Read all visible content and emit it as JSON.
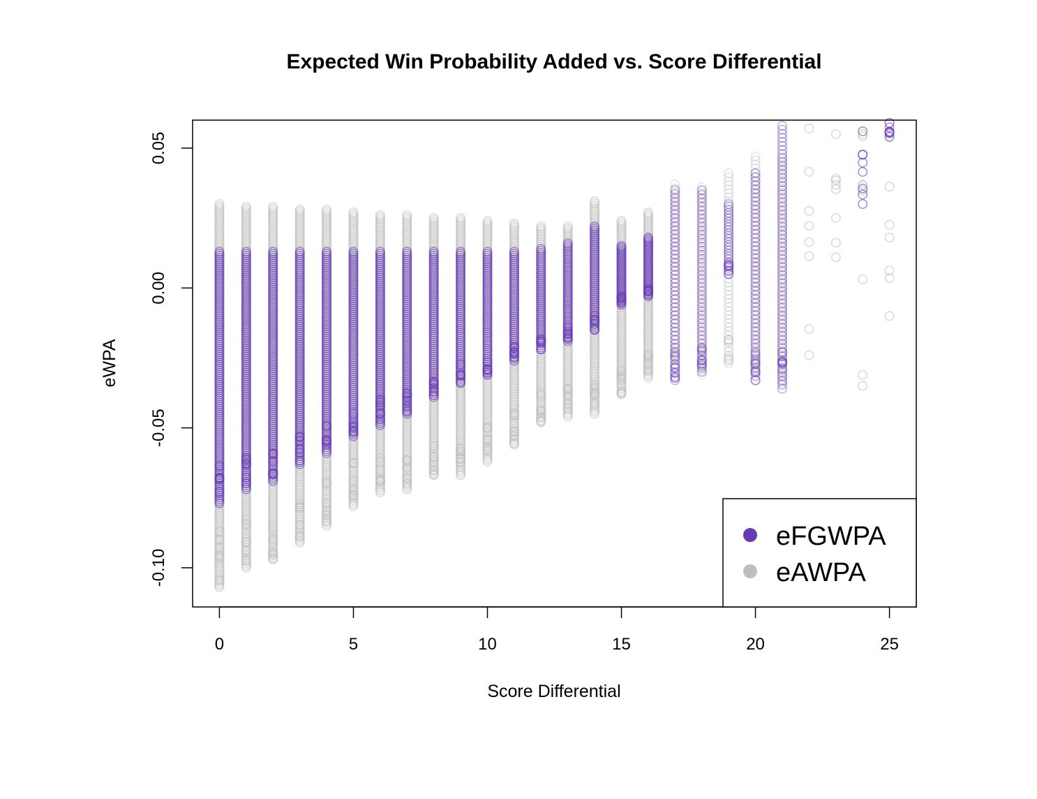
{
  "chart_data": {
    "type": "scatter",
    "title": "Expected Win Probability Added vs. Score Differential",
    "xlabel": "Score Differential",
    "ylabel": "eWPA",
    "xlim": [
      -1,
      26
    ],
    "ylim": [
      -0.114,
      0.06
    ],
    "x_ticks": [
      0,
      5,
      10,
      15,
      20,
      25
    ],
    "x_tick_labels": [
      "0",
      "5",
      "10",
      "15",
      "20",
      "25"
    ],
    "y_ticks": [
      -0.1,
      -0.05,
      0.0,
      0.05
    ],
    "y_tick_labels": [
      "-0.10",
      "-0.05",
      "0.00",
      "0.05"
    ],
    "grid": false,
    "legend_position": "bottom-right",
    "series": [
      {
        "name": "eFGWPA",
        "color": "#673ab7",
        "marker": "open-circle",
        "columns": [
          {
            "x": 0,
            "min": -0.077,
            "max": 0.013,
            "density": "dense"
          },
          {
            "x": 1,
            "min": -0.072,
            "max": 0.013,
            "density": "dense"
          },
          {
            "x": 2,
            "min": -0.069,
            "max": 0.013,
            "density": "dense"
          },
          {
            "x": 3,
            "min": -0.063,
            "max": 0.013,
            "density": "dense"
          },
          {
            "x": 4,
            "min": -0.059,
            "max": 0.013,
            "density": "dense"
          },
          {
            "x": 5,
            "min": -0.053,
            "max": 0.013,
            "density": "dense"
          },
          {
            "x": 6,
            "min": -0.049,
            "max": 0.013,
            "density": "dense"
          },
          {
            "x": 7,
            "min": -0.045,
            "max": 0.013,
            "density": "dense"
          },
          {
            "x": 8,
            "min": -0.039,
            "max": 0.013,
            "density": "dense"
          },
          {
            "x": 9,
            "min": -0.034,
            "max": 0.013,
            "density": "dense"
          },
          {
            "x": 10,
            "min": -0.031,
            "max": 0.013,
            "density": "dense"
          },
          {
            "x": 11,
            "min": -0.026,
            "max": 0.013,
            "density": "dense"
          },
          {
            "x": 12,
            "min": -0.022,
            "max": 0.014,
            "density": "dense"
          },
          {
            "x": 13,
            "min": -0.019,
            "max": 0.016,
            "density": "dense"
          },
          {
            "x": 14,
            "min": -0.015,
            "max": 0.022,
            "density": "dense"
          },
          {
            "x": 15,
            "min": -0.006,
            "max": 0.015,
            "density": "dense"
          },
          {
            "x": 16,
            "min": -0.003,
            "max": 0.018,
            "density": "dense"
          },
          {
            "x": 17,
            "min": -0.033,
            "max": 0.035,
            "density": "medium"
          },
          {
            "x": 18,
            "min": -0.03,
            "max": 0.035,
            "density": "medium"
          },
          {
            "x": 19,
            "min": 0.005,
            "max": 0.03,
            "density": "medium"
          },
          {
            "x": 20,
            "min": -0.033,
            "max": 0.041,
            "density": "medium"
          },
          {
            "x": 21,
            "min": -0.036,
            "max": 0.058,
            "density": "medium"
          },
          {
            "x": 24,
            "min": 0.03,
            "max": 0.056,
            "density": "sparse"
          },
          {
            "x": 25,
            "min": 0.054,
            "max": 0.059,
            "density": "sparse"
          }
        ]
      },
      {
        "name": "eAWPA",
        "color": "#bebebe",
        "marker": "open-circle",
        "columns": [
          {
            "x": 0,
            "min": -0.107,
            "max": 0.03,
            "density": "dense"
          },
          {
            "x": 1,
            "min": -0.1,
            "max": 0.029,
            "density": "dense"
          },
          {
            "x": 2,
            "min": -0.097,
            "max": 0.029,
            "density": "dense"
          },
          {
            "x": 3,
            "min": -0.091,
            "max": 0.028,
            "density": "dense"
          },
          {
            "x": 4,
            "min": -0.085,
            "max": 0.028,
            "density": "dense"
          },
          {
            "x": 5,
            "min": -0.078,
            "max": 0.027,
            "density": "dense"
          },
          {
            "x": 6,
            "min": -0.073,
            "max": 0.026,
            "density": "dense"
          },
          {
            "x": 7,
            "min": -0.072,
            "max": 0.026,
            "density": "dense"
          },
          {
            "x": 8,
            "min": -0.067,
            "max": 0.025,
            "density": "dense"
          },
          {
            "x": 9,
            "min": -0.067,
            "max": 0.025,
            "density": "dense"
          },
          {
            "x": 10,
            "min": -0.062,
            "max": 0.024,
            "density": "dense"
          },
          {
            "x": 11,
            "min": -0.056,
            "max": 0.023,
            "density": "dense"
          },
          {
            "x": 12,
            "min": -0.048,
            "max": 0.022,
            "density": "dense"
          },
          {
            "x": 13,
            "min": -0.046,
            "max": 0.022,
            "density": "dense"
          },
          {
            "x": 14,
            "min": -0.045,
            "max": 0.031,
            "density": "dense"
          },
          {
            "x": 15,
            "min": -0.038,
            "max": 0.024,
            "density": "dense"
          },
          {
            "x": 16,
            "min": -0.032,
            "max": 0.027,
            "density": "dense"
          },
          {
            "x": 17,
            "min": -0.03,
            "max": 0.037,
            "density": "medium"
          },
          {
            "x": 18,
            "min": -0.031,
            "max": 0.036,
            "density": "medium"
          },
          {
            "x": 19,
            "min": -0.027,
            "max": 0.041,
            "density": "medium"
          },
          {
            "x": 20,
            "min": -0.031,
            "max": 0.047,
            "density": "medium"
          },
          {
            "x": 21,
            "min": -0.034,
            "max": 0.047,
            "density": "medium"
          },
          {
            "x": 22,
            "min": -0.024,
            "max": 0.057,
            "density": "sparse"
          },
          {
            "x": 23,
            "min": 0.011,
            "max": 0.055,
            "density": "sparse"
          },
          {
            "x": 24,
            "min": -0.035,
            "max": 0.055,
            "density": "sparse"
          },
          {
            "x": 25,
            "min": -0.01,
            "max": 0.059,
            "density": "sparse"
          }
        ]
      }
    ]
  }
}
